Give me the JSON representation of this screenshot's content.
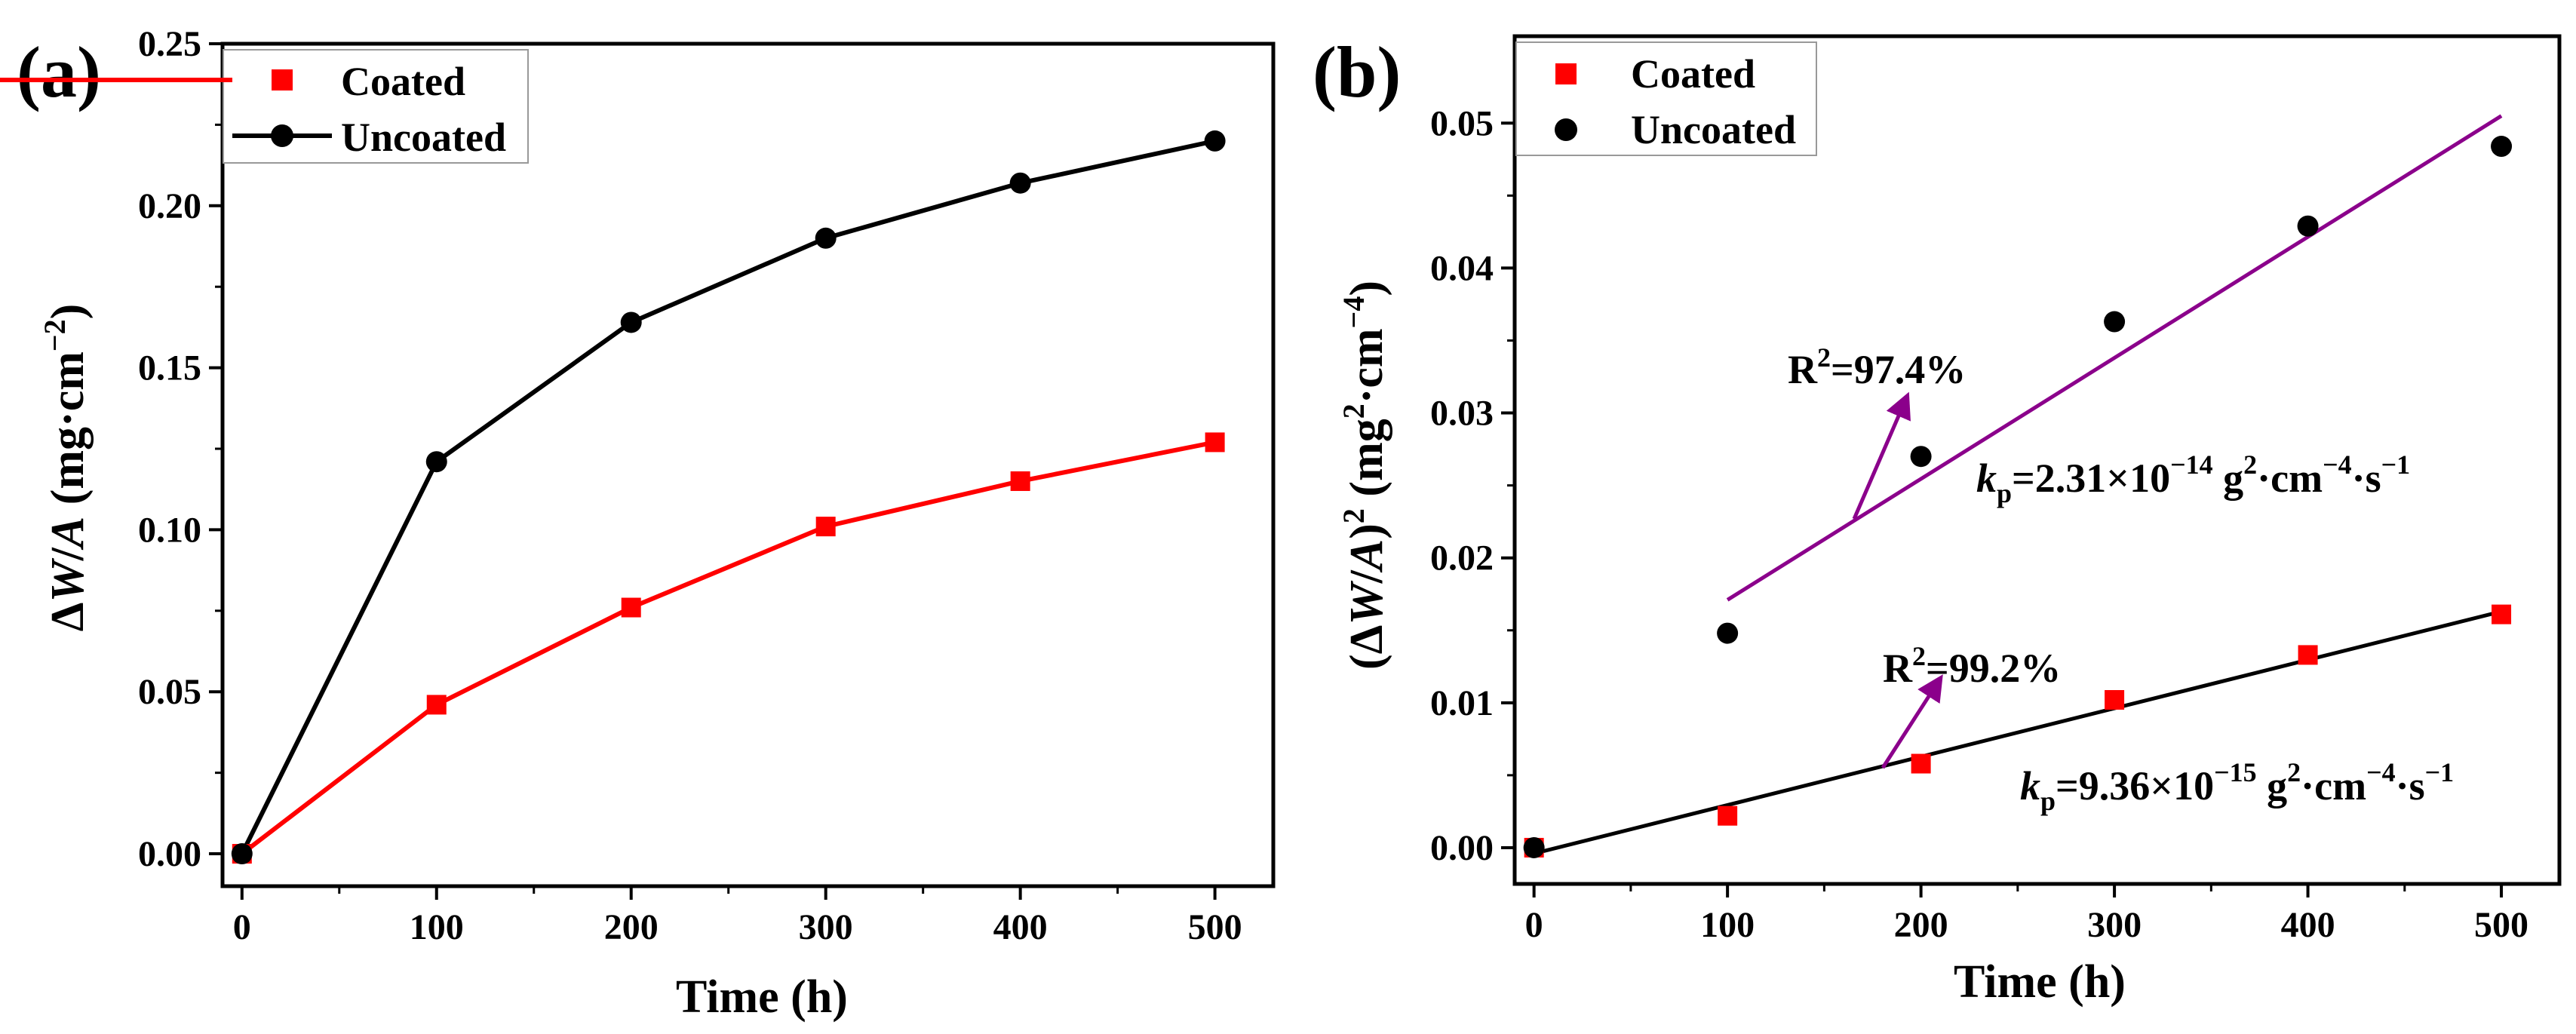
{
  "panels": {
    "a": {
      "label": "(a)"
    },
    "b": {
      "label": "(b)"
    }
  },
  "chart_data": [
    {
      "type": "line",
      "panel": "a",
      "xlabel": "Time (h)",
      "ylabel": "ΔW/A (mg·cm⁻²)",
      "xlim": [
        -10,
        530
      ],
      "ylim": [
        -0.01,
        0.25
      ],
      "xticks": [
        0,
        100,
        200,
        300,
        400,
        500
      ],
      "xtick_labels": [
        "0",
        "100",
        "200",
        "300",
        "400",
        "500"
      ],
      "yticks": [
        0.0,
        0.05,
        0.1,
        0.15,
        0.2,
        0.25
      ],
      "ytick_labels": [
        "0.00",
        "0.05",
        "0.10",
        "0.15",
        "0.20",
        "0.25"
      ],
      "legend_position": "top-left",
      "x": [
        0,
        100,
        200,
        300,
        400,
        500
      ],
      "series": [
        {
          "name": "Coated",
          "color": "#ff0000",
          "marker": "square",
          "values": [
            0.0,
            0.046,
            0.076,
            0.101,
            0.115,
            0.127
          ]
        },
        {
          "name": "Uncoated",
          "color": "#000000",
          "marker": "circle",
          "values": [
            0.0,
            0.121,
            0.164,
            0.19,
            0.207,
            0.22
          ]
        }
      ]
    },
    {
      "type": "scatter",
      "panel": "b",
      "xlabel": "Time (h)",
      "ylabel": "(ΔW/A)² (mg²·cm⁻⁴)",
      "xlim": [
        -10,
        530
      ],
      "ylim": [
        -0.0025,
        0.056
      ],
      "xticks": [
        0,
        100,
        200,
        300,
        400,
        500
      ],
      "xtick_labels": [
        "0",
        "100",
        "200",
        "300",
        "400",
        "500"
      ],
      "yticks": [
        0.0,
        0.01,
        0.02,
        0.03,
        0.04,
        0.05
      ],
      "ytick_labels": [
        "0.00",
        "0.01",
        "0.02",
        "0.03",
        "0.04",
        "0.05"
      ],
      "legend_position": "top-left",
      "x": [
        0,
        100,
        200,
        300,
        400,
        500
      ],
      "series": [
        {
          "name": "Coated",
          "color": "#ff0000",
          "marker": "square",
          "values": [
            0.0,
            0.0022,
            0.0058,
            0.0102,
            0.0133,
            0.0161
          ]
        },
        {
          "name": "Uncoated",
          "color": "#000000",
          "marker": "circle",
          "values": [
            0.0,
            0.0148,
            0.027,
            0.0363,
            0.0429,
            0.0484
          ]
        }
      ],
      "fits": [
        {
          "series": "Uncoated",
          "color": "#8b008b",
          "x_range": [
            100,
            500
          ],
          "y_range": [
            0.0171,
            0.0505
          ]
        },
        {
          "series": "Coated",
          "color": "#000000",
          "x_range": [
            0,
            500
          ],
          "y_range": [
            -0.0004,
            0.0163
          ]
        }
      ],
      "annotations": {
        "r2_uncoated": {
          "base": "R",
          "sup": "2",
          "rest": "=97.4%"
        },
        "r2_coated": {
          "base": "R",
          "sup": "2",
          "rest": "=99.2%"
        },
        "kp_uncoated": {
          "k": "k",
          "sub": "p",
          "mant": "=2.31×10",
          "exp": "−14",
          "u1": " g",
          "u1e": "2",
          "u2": "·cm",
          "u2e": "−4",
          "u3": "·s",
          "u3e": "−1"
        },
        "kp_coated": {
          "k": "k",
          "sub": "p",
          "mant": "=9.36×10",
          "exp": "−15",
          "u1": " g",
          "u1e": "2",
          "u2": "·cm",
          "u2e": "−4",
          "u3": "·s",
          "u3e": "−1"
        }
      }
    }
  ]
}
